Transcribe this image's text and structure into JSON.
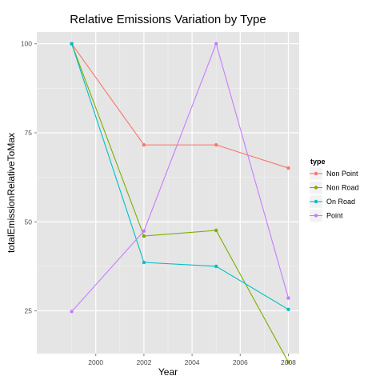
{
  "chart_data": {
    "type": "line",
    "title": "Relative Emissions Variation by Type",
    "xlabel": "Year",
    "ylabel": "totalEmissionRelativeToMax",
    "x": [
      1999,
      2002,
      2005,
      2008
    ],
    "xlim": [
      1997.55,
      2008.45
    ],
    "ylim": [
      13.0,
      103.3
    ],
    "xticks": [
      2000,
      2002,
      2004,
      2006,
      2008
    ],
    "yticks": [
      25,
      50,
      75,
      100
    ],
    "grid": true,
    "legend": {
      "title": "type",
      "position": "right"
    },
    "series": [
      {
        "name": "Non Point",
        "color": "#F8766D",
        "values": [
          100,
          71.6,
          71.6,
          65.1
        ]
      },
      {
        "name": "Non Road",
        "color": "#7CAE00",
        "values": [
          100,
          46.0,
          47.6,
          10.6
        ]
      },
      {
        "name": "On Road",
        "color": "#00BFC4",
        "values": [
          100,
          38.6,
          37.5,
          25.4
        ]
      },
      {
        "name": "Point",
        "color": "#C77CFF",
        "values": [
          24.8,
          47.4,
          100,
          28.6
        ]
      }
    ]
  }
}
